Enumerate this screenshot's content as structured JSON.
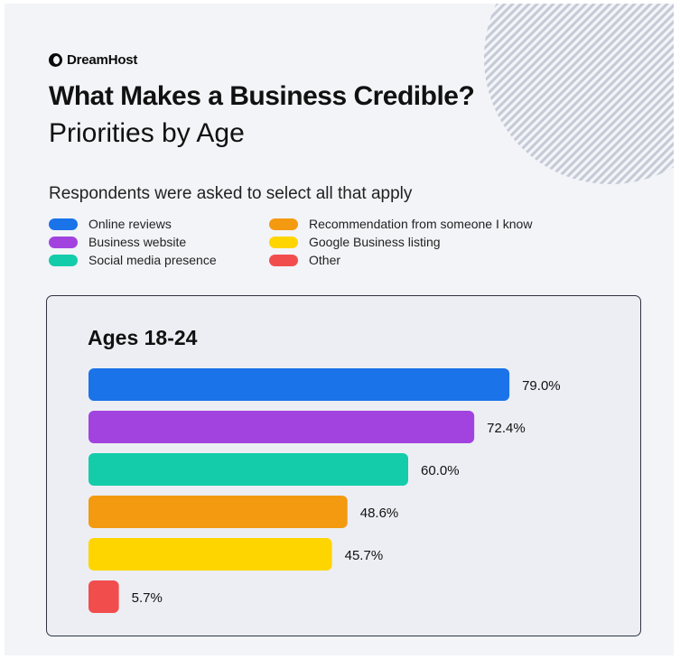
{
  "brand": {
    "name": "DreamHost"
  },
  "header": {
    "title": "What Makes a Business Credible?",
    "subtitle": "Priorities by Age",
    "note": "Respondents were asked to select all that apply"
  },
  "legend": [
    {
      "label": "Online reviews",
      "color": "#1a73e8"
    },
    {
      "label": "Business website",
      "color": "#a243e0"
    },
    {
      "label": "Social media presence",
      "color": "#14ccaa"
    },
    {
      "label": "Recommendation from someone I know",
      "color": "#f39a10"
    },
    {
      "label": "Google Business listing",
      "color": "#ffd500"
    },
    {
      "label": "Other",
      "color": "#f24d4d"
    }
  ],
  "panel": {
    "title": "Ages 18-24"
  },
  "chart_data": {
    "type": "bar",
    "orientation": "horizontal",
    "title": "Ages 18-24",
    "categories": [
      "Online reviews",
      "Business website",
      "Social media presence",
      "Recommendation from someone I know",
      "Google Business listing",
      "Other"
    ],
    "values": [
      79.0,
      72.4,
      60.0,
      48.6,
      45.7,
      5.7
    ],
    "value_labels": [
      "79.0%",
      "72.4%",
      "60.0%",
      "48.6%",
      "45.7%",
      "5.7%"
    ],
    "colors": [
      "#1a73e8",
      "#a243e0",
      "#14ccaa",
      "#f39a10",
      "#ffd500",
      "#f24d4d"
    ],
    "xlim": [
      0,
      100
    ],
    "grid": false,
    "legend_position": "top"
  }
}
